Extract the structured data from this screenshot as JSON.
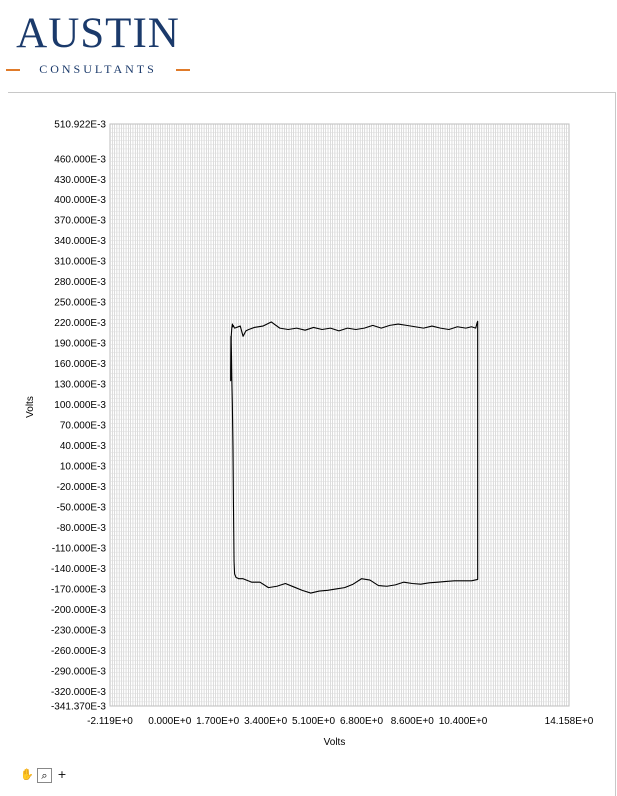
{
  "logo": {
    "main": "AUSTIN",
    "sub": "CONSULTANTS",
    "color": "#1b3a6b",
    "accent": "#e07b2a"
  },
  "toolbar": {
    "icons": [
      "hand-pan-icon",
      "zoom-icon",
      "crosshair-icon"
    ],
    "glyphs": [
      "✋",
      "⌕",
      "+"
    ]
  },
  "chart_data": {
    "type": "line",
    "xlabel": "Volts",
    "ylabel": "Volts",
    "xlim": [
      -2.119,
      14.158
    ],
    "ylim": [
      -0.34137,
      0.510922
    ],
    "grid": true,
    "x_ticks": [
      {
        "value": -2.119,
        "label": "-2.119E+0"
      },
      {
        "value": 0,
        "label": "0.000E+0"
      },
      {
        "value": 1.7,
        "label": "1.700E+0"
      },
      {
        "value": 3.4,
        "label": "3.400E+0"
      },
      {
        "value": 5.1,
        "label": "5.100E+0"
      },
      {
        "value": 6.8,
        "label": "6.800E+0"
      },
      {
        "value": 8.6,
        "label": "8.600E+0"
      },
      {
        "value": 10.4,
        "label": "10.400E+0"
      },
      {
        "value": 14.158,
        "label": "14.158E+0"
      }
    ],
    "y_ticks": [
      {
        "value": 0.510922,
        "label": "510.922E-3"
      },
      {
        "value": 0.46,
        "label": "460.000E-3"
      },
      {
        "value": 0.43,
        "label": "430.000E-3"
      },
      {
        "value": 0.4,
        "label": "400.000E-3"
      },
      {
        "value": 0.37,
        "label": "370.000E-3"
      },
      {
        "value": 0.34,
        "label": "340.000E-3"
      },
      {
        "value": 0.31,
        "label": "310.000E-3"
      },
      {
        "value": 0.28,
        "label": "280.000E-3"
      },
      {
        "value": 0.25,
        "label": "250.000E-3"
      },
      {
        "value": 0.22,
        "label": "220.000E-3"
      },
      {
        "value": 0.19,
        "label": "190.000E-3"
      },
      {
        "value": 0.16,
        "label": "160.000E-3"
      },
      {
        "value": 0.13,
        "label": "130.000E-3"
      },
      {
        "value": 0.1,
        "label": "100.000E-3"
      },
      {
        "value": 0.07,
        "label": "70.000E-3"
      },
      {
        "value": 0.04,
        "label": "40.000E-3"
      },
      {
        "value": 0.01,
        "label": "10.000E-3"
      },
      {
        "value": -0.02,
        "label": "-20.000E-3"
      },
      {
        "value": -0.05,
        "label": "-50.000E-3"
      },
      {
        "value": -0.08,
        "label": "-80.000E-3"
      },
      {
        "value": -0.11,
        "label": "-110.000E-3"
      },
      {
        "value": -0.14,
        "label": "-140.000E-3"
      },
      {
        "value": -0.17,
        "label": "-170.000E-3"
      },
      {
        "value": -0.2,
        "label": "-200.000E-3"
      },
      {
        "value": -0.23,
        "label": "-230.000E-3"
      },
      {
        "value": -0.26,
        "label": "-260.000E-3"
      },
      {
        "value": -0.29,
        "label": "-290.000E-3"
      },
      {
        "value": -0.32,
        "label": "-320.000E-3"
      },
      {
        "value": -0.34137,
        "label": "-341.370E-3"
      }
    ],
    "series": [
      {
        "color": "#000000",
        "x": [
          2.18,
          2.2,
          2.22,
          2.24,
          2.25,
          2.3,
          2.5,
          2.6,
          2.7,
          2.8,
          3.0,
          3.3,
          3.6,
          3.9,
          4.2,
          4.5,
          4.8,
          5.1,
          5.4,
          5.7,
          6.0,
          6.3,
          6.6,
          6.9,
          7.2,
          7.5,
          7.8,
          8.1,
          8.4,
          8.7,
          9.0,
          9.3,
          9.6,
          9.9,
          10.2,
          10.5,
          10.7,
          10.85,
          10.9,
          10.92,
          10.92,
          10.7,
          10.4,
          10.1,
          9.8,
          9.5,
          9.2,
          8.9,
          8.6,
          8.3,
          8.0,
          7.7,
          7.4,
          7.1,
          6.8,
          6.5,
          6.2,
          5.9,
          5.6,
          5.3,
          5.0,
          4.7,
          4.4,
          4.1,
          3.8,
          3.5,
          3.2,
          2.9,
          2.6,
          2.45,
          2.35,
          2.3,
          2.28,
          2.26,
          2.24,
          2.22,
          2.2,
          2.19,
          2.18,
          2.17,
          2.16,
          2.16,
          2.17,
          2.18
        ],
        "y": [
          0.2,
          0.212,
          0.218,
          0.214,
          0.216,
          0.212,
          0.215,
          0.2,
          0.208,
          0.21,
          0.213,
          0.215,
          0.221,
          0.212,
          0.21,
          0.212,
          0.209,
          0.213,
          0.21,
          0.212,
          0.208,
          0.212,
          0.21,
          0.212,
          0.216,
          0.212,
          0.216,
          0.218,
          0.216,
          0.214,
          0.212,
          0.215,
          0.212,
          0.21,
          0.214,
          0.212,
          0.214,
          0.212,
          0.22,
          0.222,
          -0.156,
          -0.158,
          -0.158,
          -0.158,
          -0.159,
          -0.16,
          -0.161,
          -0.163,
          -0.162,
          -0.16,
          -0.164,
          -0.166,
          -0.165,
          -0.157,
          -0.155,
          -0.163,
          -0.168,
          -0.17,
          -0.172,
          -0.173,
          -0.176,
          -0.172,
          -0.167,
          -0.162,
          -0.166,
          -0.168,
          -0.16,
          -0.16,
          -0.155,
          -0.155,
          -0.153,
          -0.148,
          -0.13,
          -0.05,
          0.04,
          0.1,
          0.14,
          0.17,
          0.19,
          0.2,
          0.15,
          0.135,
          0.14,
          0.2
        ]
      }
    ]
  }
}
